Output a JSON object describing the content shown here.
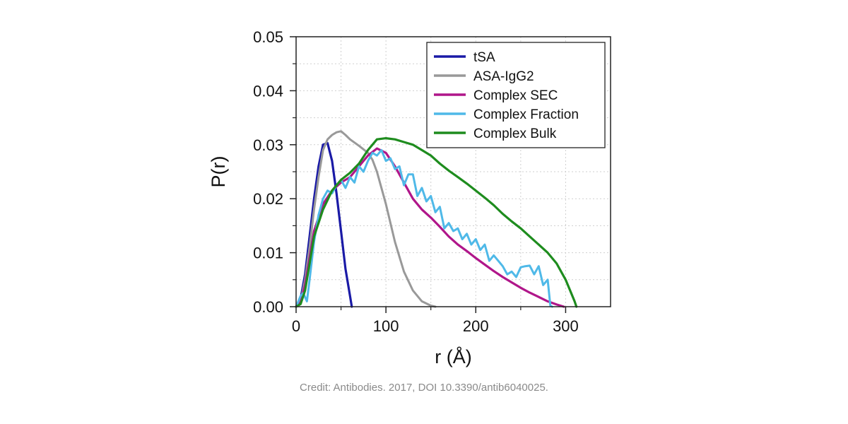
{
  "chart_data": {
    "type": "line",
    "xlabel": "r (Å)",
    "ylabel": "P(r)",
    "xlim": [
      0,
      350
    ],
    "ylim": [
      0,
      0.05
    ],
    "x_ticks": [
      0,
      100,
      200,
      300
    ],
    "x_tick_labels": [
      "0",
      "100",
      "200",
      "300"
    ],
    "y_ticks": [
      0,
      0.01,
      0.02,
      0.03,
      0.04,
      0.05
    ],
    "y_tick_labels": [
      "0.00",
      "0.01",
      "0.02",
      "0.03",
      "0.04",
      "0.05"
    ],
    "grid": true,
    "legend_position": "top-right",
    "series": [
      {
        "name": "tSA",
        "color": "#1a1aa6",
        "points": [
          [
            0,
            0
          ],
          [
            5,
            0.0015
          ],
          [
            10,
            0.006
          ],
          [
            15,
            0.013
          ],
          [
            20,
            0.02
          ],
          [
            25,
            0.026
          ],
          [
            30,
            0.03
          ],
          [
            35,
            0.0303
          ],
          [
            40,
            0.027
          ],
          [
            45,
            0.021
          ],
          [
            50,
            0.014
          ],
          [
            55,
            0.007
          ],
          [
            60,
            0.002
          ],
          [
            62,
            0
          ]
        ]
      },
      {
        "name": "ASA-IgG2",
        "color": "#999999",
        "points": [
          [
            0,
            0
          ],
          [
            5,
            0.001
          ],
          [
            10,
            0.005
          ],
          [
            15,
            0.011
          ],
          [
            20,
            0.018
          ],
          [
            25,
            0.024
          ],
          [
            30,
            0.029
          ],
          [
            35,
            0.031
          ],
          [
            40,
            0.0318
          ],
          [
            45,
            0.0323
          ],
          [
            50,
            0.0325
          ],
          [
            55,
            0.0318
          ],
          [
            60,
            0.031
          ],
          [
            70,
            0.0298
          ],
          [
            80,
            0.0285
          ],
          [
            85,
            0.0272
          ],
          [
            90,
            0.025
          ],
          [
            100,
            0.019
          ],
          [
            110,
            0.012
          ],
          [
            120,
            0.0065
          ],
          [
            130,
            0.003
          ],
          [
            140,
            0.001
          ],
          [
            150,
            0.0002
          ],
          [
            155,
            0
          ]
        ]
      },
      {
        "name": "Complex SEC",
        "color": "#b0168a",
        "points": [
          [
            0,
            0
          ],
          [
            5,
            0.0008
          ],
          [
            10,
            0.004
          ],
          [
            15,
            0.009
          ],
          [
            20,
            0.014
          ],
          [
            30,
            0.019
          ],
          [
            40,
            0.0215
          ],
          [
            50,
            0.023
          ],
          [
            60,
            0.024
          ],
          [
            70,
            0.026
          ],
          [
            80,
            0.028
          ],
          [
            90,
            0.0293
          ],
          [
            100,
            0.0285
          ],
          [
            110,
            0.026
          ],
          [
            120,
            0.023
          ],
          [
            130,
            0.02
          ],
          [
            140,
            0.018
          ],
          [
            150,
            0.0165
          ],
          [
            160,
            0.0148
          ],
          [
            170,
            0.013
          ],
          [
            180,
            0.0115
          ],
          [
            190,
            0.0103
          ],
          [
            200,
            0.009
          ],
          [
            210,
            0.0078
          ],
          [
            220,
            0.0066
          ],
          [
            230,
            0.0055
          ],
          [
            240,
            0.0045
          ],
          [
            250,
            0.0035
          ],
          [
            260,
            0.0026
          ],
          [
            270,
            0.0018
          ],
          [
            280,
            0.001
          ],
          [
            290,
            0.0004
          ],
          [
            298,
            0
          ]
        ]
      },
      {
        "name": "Complex Fraction",
        "color": "#4fb9e8",
        "points": [
          [
            0,
            0
          ],
          [
            5,
            0.002
          ],
          [
            8,
            0.0025
          ],
          [
            12,
            0.001
          ],
          [
            15,
            0.005
          ],
          [
            20,
            0.012
          ],
          [
            25,
            0.017
          ],
          [
            30,
            0.02
          ],
          [
            35,
            0.0215
          ],
          [
            40,
            0.021
          ],
          [
            45,
            0.0225
          ],
          [
            50,
            0.0235
          ],
          [
            55,
            0.022
          ],
          [
            60,
            0.024
          ],
          [
            65,
            0.023
          ],
          [
            70,
            0.026
          ],
          [
            75,
            0.025
          ],
          [
            80,
            0.027
          ],
          [
            85,
            0.0285
          ],
          [
            90,
            0.028
          ],
          [
            95,
            0.029
          ],
          [
            100,
            0.027
          ],
          [
            105,
            0.0275
          ],
          [
            110,
            0.0255
          ],
          [
            115,
            0.026
          ],
          [
            120,
            0.0225
          ],
          [
            125,
            0.0245
          ],
          [
            130,
            0.0245
          ],
          [
            135,
            0.0205
          ],
          [
            140,
            0.022
          ],
          [
            145,
            0.0195
          ],
          [
            150,
            0.0205
          ],
          [
            155,
            0.0175
          ],
          [
            160,
            0.0185
          ],
          [
            165,
            0.0145
          ],
          [
            170,
            0.0155
          ],
          [
            175,
            0.014
          ],
          [
            180,
            0.0145
          ],
          [
            185,
            0.0125
          ],
          [
            190,
            0.0135
          ],
          [
            195,
            0.0115
          ],
          [
            200,
            0.0125
          ],
          [
            205,
            0.0105
          ],
          [
            210,
            0.0115
          ],
          [
            215,
            0.0085
          ],
          [
            220,
            0.0095
          ],
          [
            225,
            0.0085
          ],
          [
            230,
            0.0075
          ],
          [
            235,
            0.006
          ],
          [
            240,
            0.0065
          ],
          [
            245,
            0.0055
          ],
          [
            250,
            0.0073
          ],
          [
            255,
            0.0075
          ],
          [
            260,
            0.0076
          ],
          [
            265,
            0.006
          ],
          [
            270,
            0.0075
          ],
          [
            275,
            0.004
          ],
          [
            280,
            0.005
          ],
          [
            283,
            0.0002
          ],
          [
            285,
            0
          ]
        ]
      },
      {
        "name": "Complex Bulk",
        "color": "#1e8c1e",
        "points": [
          [
            0,
            0
          ],
          [
            5,
            0.0005
          ],
          [
            10,
            0.003
          ],
          [
            15,
            0.008
          ],
          [
            20,
            0.013
          ],
          [
            30,
            0.018
          ],
          [
            40,
            0.0215
          ],
          [
            50,
            0.0235
          ],
          [
            60,
            0.0248
          ],
          [
            70,
            0.0265
          ],
          [
            80,
            0.029
          ],
          [
            90,
            0.031
          ],
          [
            100,
            0.0312
          ],
          [
            110,
            0.031
          ],
          [
            120,
            0.0305
          ],
          [
            130,
            0.03
          ],
          [
            140,
            0.029
          ],
          [
            150,
            0.028
          ],
          [
            160,
            0.0265
          ],
          [
            170,
            0.0252
          ],
          [
            180,
            0.024
          ],
          [
            190,
            0.0228
          ],
          [
            200,
            0.0215
          ],
          [
            210,
            0.0202
          ],
          [
            220,
            0.0188
          ],
          [
            230,
            0.0172
          ],
          [
            240,
            0.0158
          ],
          [
            250,
            0.0145
          ],
          [
            260,
            0.013
          ],
          [
            270,
            0.0115
          ],
          [
            280,
            0.01
          ],
          [
            290,
            0.008
          ],
          [
            300,
            0.005
          ],
          [
            305,
            0.003
          ],
          [
            310,
            0.001
          ],
          [
            312,
            0
          ]
        ]
      }
    ]
  },
  "credit": "Credit: Antibodies. 2017, DOI 10.3390/antib6040025."
}
